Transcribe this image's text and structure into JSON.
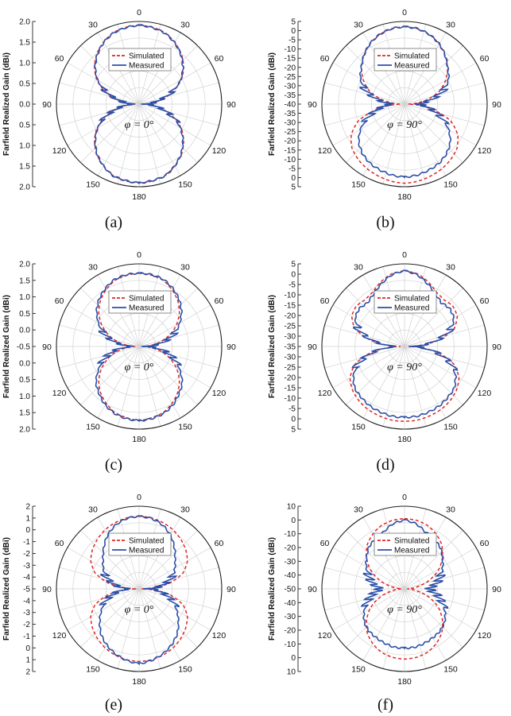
{
  "chart_data": [
    {
      "panel": "(a)",
      "type": "polar-line",
      "ylabel": "Farfield Realized Gain (dBi)",
      "radial_ticks": [
        "2.0",
        "1.5",
        "1.0",
        "0.5",
        "0.0",
        "0.5",
        "1.0",
        "1.5",
        "2.0"
      ],
      "rlim": [
        -2.2,
        2.2
      ],
      "angle_labels": [
        "0",
        "30",
        "60",
        "90",
        "120",
        "150",
        "180",
        "150",
        "120",
        "90",
        "60",
        "30"
      ],
      "phi_label": "φ = 0°",
      "legend": [
        "Simulated",
        "Measured"
      ],
      "series": [
        {
          "name": "Simulated",
          "style": "dashed",
          "color": "#e02424",
          "angles_deg": [
            0,
            10,
            20,
            30,
            40,
            50,
            60,
            70,
            80,
            90,
            100,
            110,
            120,
            130,
            140,
            150,
            160,
            170,
            180
          ],
          "gain_dbi": [
            2.0,
            1.95,
            1.85,
            1.6,
            1.3,
            0.9,
            0.4,
            -0.3,
            -1.1,
            -2.0,
            -1.1,
            -0.3,
            0.4,
            0.9,
            1.3,
            1.6,
            1.85,
            1.95,
            2.0
          ]
        },
        {
          "name": "Measured",
          "style": "solid",
          "color": "#2b4fa8",
          "angles_deg": [
            0,
            10,
            20,
            30,
            40,
            50,
            60,
            70,
            80,
            85,
            90,
            95,
            100,
            110,
            120,
            130,
            140,
            150,
            160,
            170,
            180
          ],
          "gain_dbi": [
            2.0,
            1.93,
            1.82,
            1.58,
            1.25,
            0.85,
            0.35,
            -0.35,
            -1.2,
            -1.5,
            -1.9,
            -1.5,
            -1.1,
            -0.35,
            0.35,
            0.85,
            1.28,
            1.6,
            1.86,
            1.93,
            2.0
          ]
        }
      ]
    },
    {
      "panel": "(b)",
      "type": "polar-line",
      "ylabel": "Farfield Realized Gain (dBi)",
      "radial_ticks": [
        "5",
        "0",
        "-5",
        "-10",
        "-15",
        "-20",
        "-25",
        "-30",
        "-35",
        "-40",
        "-35",
        "-30",
        "-25",
        "-20",
        "-15",
        "-10",
        "-5",
        "0",
        "5"
      ],
      "rlim": [
        -42,
        5
      ],
      "angle_labels": [
        "0",
        "30",
        "60",
        "90",
        "120",
        "150",
        "180",
        "150",
        "120",
        "90",
        "60",
        "30"
      ],
      "phi_label": "φ = 90°",
      "legend": [
        "Simulated",
        "Measured"
      ],
      "series": [
        {
          "name": "Simulated",
          "style": "dashed",
          "color": "#e02424",
          "angles_deg": [
            0,
            10,
            20,
            30,
            40,
            50,
            60,
            70,
            80,
            90,
            100,
            110,
            120,
            130,
            140,
            150,
            160,
            170,
            180
          ],
          "gain_dbi": [
            2,
            1.5,
            0,
            -2.5,
            -6,
            -10,
            -15,
            -21,
            -30,
            -40,
            -27,
            -14,
            -7,
            -3,
            -1,
            0.5,
            1.5,
            2.5,
            3
          ]
        },
        {
          "name": "Measured",
          "style": "solid",
          "color": "#2b4fa8",
          "angles_deg": [
            0,
            10,
            20,
            30,
            40,
            50,
            60,
            70,
            80,
            85,
            90,
            95,
            100,
            110,
            120,
            130,
            140,
            150,
            160,
            170,
            180
          ],
          "gain_dbi": [
            2,
            1.5,
            0,
            -2.5,
            -6,
            -10,
            -13,
            -18,
            -26,
            -31,
            -34,
            -31,
            -27,
            -20,
            -13,
            -8,
            -5,
            -3,
            -2,
            -1,
            -0.5
          ]
        }
      ]
    },
    {
      "panel": "(c)",
      "type": "polar-line",
      "ylabel": "Farfield Realized Gain (dBi)",
      "radial_ticks": [
        "2.0",
        "1.5",
        "1.0",
        "0.5",
        "0.0",
        "-0.5",
        "0.0",
        "0.5",
        "1.0",
        "1.5",
        "2.0"
      ],
      "rlim": [
        -2.2,
        2.2
      ],
      "angle_labels": [
        "0",
        "30",
        "60",
        "90",
        "120",
        "150",
        "180",
        "150",
        "120",
        "90",
        "60",
        "30"
      ],
      "phi_label": "φ = 0°",
      "legend": [
        "Simulated",
        "Measured"
      ],
      "series": [
        {
          "name": "Simulated",
          "style": "dashed",
          "color": "#e02424",
          "angles_deg": [
            0,
            10,
            20,
            30,
            40,
            50,
            60,
            70,
            80,
            90,
            100,
            110,
            120,
            130,
            140,
            150,
            160,
            170,
            180
          ],
          "gain_dbi": [
            1.7,
            1.65,
            1.55,
            1.3,
            1.0,
            0.6,
            0.1,
            -0.5,
            -1.2,
            -2.0,
            -1.2,
            -0.5,
            0.1,
            0.6,
            1.0,
            1.3,
            1.55,
            1.65,
            1.75
          ]
        },
        {
          "name": "Measured",
          "style": "solid",
          "color": "#2b4fa8",
          "angles_deg": [
            0,
            10,
            20,
            30,
            40,
            50,
            60,
            70,
            80,
            85,
            90,
            95,
            100,
            110,
            120,
            130,
            140,
            150,
            160,
            170,
            180
          ],
          "gain_dbi": [
            1.7,
            1.68,
            1.6,
            1.38,
            1.1,
            0.75,
            0.3,
            -0.2,
            -0.9,
            -1.4,
            -1.9,
            -1.3,
            -0.8,
            -0.2,
            0.3,
            0.8,
            1.1,
            1.4,
            1.6,
            1.7,
            1.75
          ]
        }
      ]
    },
    {
      "panel": "(d)",
      "type": "polar-line",
      "ylabel": "Farfield Realized Gain (dBi)",
      "radial_ticks": [
        "5",
        "0",
        "-5",
        "-10",
        "-15",
        "-20",
        "-25",
        "-30",
        "-35",
        "-30",
        "-25",
        "-20",
        "-15",
        "-10",
        "-5",
        "0",
        "5"
      ],
      "rlim": [
        -37,
        5
      ],
      "angle_labels": [
        "0",
        "30",
        "60",
        "90",
        "120",
        "150",
        "180",
        "150",
        "120",
        "90",
        "60",
        "30"
      ],
      "phi_label": "φ = 90°",
      "legend": [
        "Simulated",
        "Measured"
      ],
      "series": [
        {
          "name": "Simulated",
          "style": "dashed",
          "color": "#e02424",
          "angles_deg": [
            0,
            10,
            20,
            30,
            40,
            50,
            60,
            70,
            80,
            90,
            100,
            110,
            120,
            130,
            140,
            150,
            160,
            170,
            180
          ],
          "gain_dbi": [
            1.5,
            0.5,
            -2,
            -5,
            -6,
            -5,
            -6,
            -10,
            -20,
            -35,
            -20,
            -10,
            -5,
            -2.5,
            -1,
            0,
            0.5,
            1,
            1
          ]
        },
        {
          "name": "Measured",
          "style": "solid",
          "color": "#2b4fa8",
          "angles_deg": [
            0,
            10,
            20,
            30,
            40,
            50,
            60,
            70,
            80,
            85,
            90,
            95,
            100,
            110,
            120,
            130,
            140,
            150,
            160,
            170,
            180
          ],
          "gain_dbi": [
            1.5,
            0,
            -3,
            -6,
            -8,
            -7,
            -8,
            -12,
            -21,
            -27,
            -33,
            -27,
            -21,
            -12,
            -7,
            -4,
            -3,
            -2,
            -1.5,
            -1,
            -1
          ]
        }
      ]
    },
    {
      "panel": "(e)",
      "type": "polar-line",
      "ylabel": "Farfield Realized Gain (dBi)",
      "radial_ticks": [
        "2",
        "1",
        "0",
        "-1",
        "-2",
        "-3",
        "-4",
        "-5",
        "-4",
        "-3",
        "-2",
        "-1",
        "0",
        "1",
        "2"
      ],
      "rlim": [
        -5.2,
        2.2
      ],
      "angle_labels": [
        "0",
        "30",
        "60",
        "90",
        "120",
        "150",
        "180",
        "150",
        "120",
        "90",
        "60",
        "30"
      ],
      "phi_label": "φ = 0°",
      "legend": [
        "Simulated",
        "Measured"
      ],
      "series": [
        {
          "name": "Simulated",
          "style": "dashed",
          "color": "#e02424",
          "angles_deg": [
            0,
            10,
            20,
            30,
            40,
            50,
            60,
            70,
            80,
            90,
            100,
            110,
            120,
            130,
            140,
            150,
            160,
            170,
            180
          ],
          "gain_dbi": [
            1.3,
            1.25,
            1.1,
            0.9,
            0.6,
            0.25,
            -0.2,
            -1.0,
            -2.5,
            -5.0,
            -2.5,
            -1.0,
            -0.2,
            0.25,
            0.6,
            0.9,
            1.1,
            1.25,
            1.3
          ]
        },
        {
          "name": "Measured",
          "style": "solid",
          "color": "#2b4fa8",
          "angles_deg": [
            0,
            10,
            20,
            30,
            40,
            50,
            60,
            70,
            80,
            85,
            90,
            95,
            100,
            110,
            120,
            130,
            140,
            150,
            160,
            170,
            180
          ],
          "gain_dbi": [
            1.3,
            1.2,
            0.9,
            0.4,
            -0.3,
            -1.0,
            -1.5,
            -2.0,
            -3.0,
            -3.5,
            -4.5,
            -3.5,
            -3.0,
            -2.0,
            -1.3,
            -0.6,
            0.1,
            0.6,
            1.0,
            1.3,
            1.5
          ]
        }
      ]
    },
    {
      "panel": "(f)",
      "type": "polar-line",
      "ylabel": "Farfield Realized Gain (dBi)",
      "radial_ticks": [
        "10",
        "0",
        "-10",
        "-20",
        "-30",
        "-40",
        "-50",
        "-40",
        "-30",
        "-20",
        "-10",
        "0",
        "10"
      ],
      "rlim": [
        -50,
        10
      ],
      "angle_labels": [
        "0",
        "30",
        "60",
        "90",
        "120",
        "150",
        "180",
        "150",
        "120",
        "90",
        "60",
        "30"
      ],
      "phi_label": "φ = 90°",
      "legend": [
        "Simulated",
        "Measured"
      ],
      "series": [
        {
          "name": "Simulated",
          "style": "dashed",
          "color": "#e02424",
          "angles_deg": [
            0,
            10,
            20,
            30,
            40,
            50,
            60,
            70,
            80,
            90,
            100,
            110,
            120,
            130,
            140,
            150,
            160,
            170,
            180
          ],
          "gain_dbi": [
            1,
            0.5,
            -1,
            -4,
            -8,
            -14,
            -21,
            -30,
            -40,
            -48,
            -40,
            -30,
            -21,
            -14,
            -8,
            -4,
            -1,
            0.5,
            1
          ]
        },
        {
          "name": "Measured",
          "style": "solid",
          "color": "#2b4fa8",
          "angles_deg": [
            0,
            10,
            20,
            30,
            40,
            50,
            60,
            70,
            80,
            85,
            90,
            95,
            100,
            110,
            120,
            130,
            140,
            150,
            160,
            170,
            180
          ],
          "gain_dbi": [
            0,
            -2,
            -6,
            -8,
            -10,
            -14,
            -18,
            -22,
            -26,
            -30,
            -32,
            -30,
            -26,
            -21,
            -16,
            -12,
            -10,
            -9,
            -8,
            -7,
            -7
          ]
        }
      ]
    }
  ]
}
